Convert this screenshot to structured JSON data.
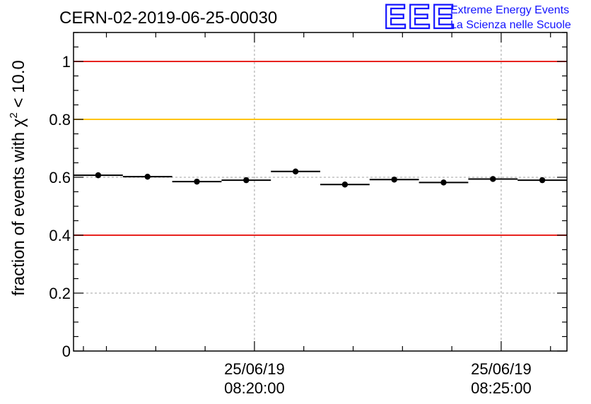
{
  "header": {
    "title": "CERN-02-2019-06-25-00030",
    "logo_text": "EEE",
    "logo_line1": "Extreme Energy Events",
    "logo_line2": "La Scienza nelle Scuole"
  },
  "colors": {
    "red_reference": "#e8231f",
    "yellow_reference": "#ffc40a",
    "logo_blue": "#1414ff",
    "grid": "#a0a0a0",
    "data": "#000000"
  },
  "chart_data": {
    "type": "scatter",
    "title": "CERN-02-2019-06-25-00030",
    "xlabel": "",
    "ylabel": "fraction of events with χ² < 10.0",
    "ylabel_parts": {
      "pre": "fraction of events with χ",
      "sup": "2",
      "post": " < 10.0"
    },
    "xlim": [
      "25/06/19 08:16:20",
      "25/06/19 08:26:20"
    ],
    "ylim": [
      0,
      1.1
    ],
    "y_ticks": [
      0,
      0.2,
      0.4,
      0.6,
      0.8,
      1
    ],
    "y_tick_labels": [
      "0",
      "0.2",
      "0.4",
      "0.6",
      "0.8",
      "1"
    ],
    "x_major_ticks": [
      {
        "time": "25/06/19 08:20:00",
        "date_label": "25/06/19",
        "time_label": "08:20:00"
      },
      {
        "time": "25/06/19 08:25:00",
        "date_label": "25/06/19",
        "time_label": "08:25:00"
      }
    ],
    "grid": true,
    "reference_lines": [
      {
        "y": 1.0,
        "color": "#e8231f"
      },
      {
        "y": 0.8,
        "color": "#ffc40a"
      },
      {
        "y": 0.4,
        "color": "#e8231f"
      }
    ],
    "series": [
      {
        "points": [
          {
            "x_start": "25/06/19 08:16:20",
            "x_end": "25/06/19 08:17:20",
            "y": 0.607
          },
          {
            "x_start": "25/06/19 08:17:20",
            "x_end": "25/06/19 08:18:20",
            "y": 0.602
          },
          {
            "x_start": "25/06/19 08:18:20",
            "x_end": "25/06/19 08:19:20",
            "y": 0.585
          },
          {
            "x_start": "25/06/19 08:19:20",
            "x_end": "25/06/19 08:20:20",
            "y": 0.59
          },
          {
            "x_start": "25/06/19 08:20:20",
            "x_end": "25/06/19 08:21:20",
            "y": 0.62
          },
          {
            "x_start": "25/06/19 08:21:20",
            "x_end": "25/06/19 08:22:20",
            "y": 0.575
          },
          {
            "x_start": "25/06/19 08:22:20",
            "x_end": "25/06/19 08:23:20",
            "y": 0.592
          },
          {
            "x_start": "25/06/19 08:23:20",
            "x_end": "25/06/19 08:24:20",
            "y": 0.582
          },
          {
            "x_start": "25/06/19 08:24:20",
            "x_end": "25/06/19 08:25:20",
            "y": 0.594
          },
          {
            "x_start": "25/06/19 08:25:20",
            "x_end": "25/06/19 08:26:20",
            "y": 0.59
          }
        ]
      }
    ]
  }
}
